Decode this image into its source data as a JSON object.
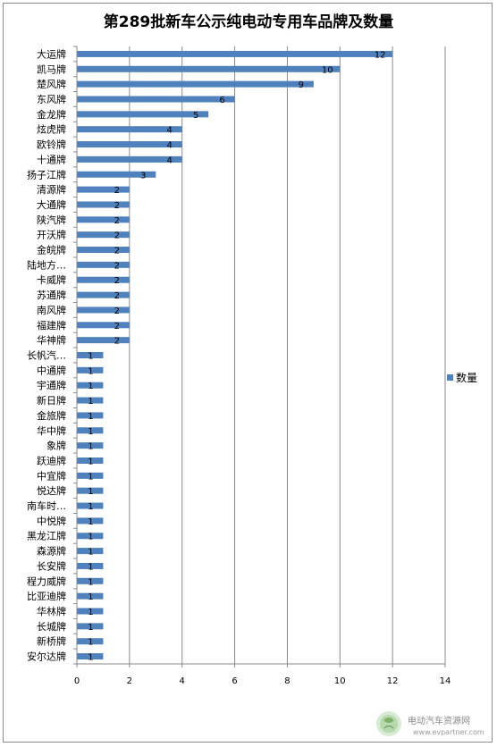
{
  "chart_data": {
    "type": "bar",
    "orientation": "horizontal",
    "title": "第289批新车公示纯电动专用车品牌及数量",
    "categories": [
      "大运牌",
      "凯马牌",
      "楚风牌",
      "东风牌",
      "金龙牌",
      "炫虎牌",
      "欧铃牌",
      "十通牌",
      "扬子江牌",
      "清源牌",
      "大通牌",
      "陕汽牌",
      "开沃牌",
      "金皖牌",
      "陆地方…",
      "卡威牌",
      "苏通牌",
      "南风牌",
      "福建牌",
      "华神牌",
      "长帆汽…",
      "中通牌",
      "宇通牌",
      "新日牌",
      "金旅牌",
      "华中牌",
      "象牌",
      "跃迪牌",
      "中宜牌",
      "悦达牌",
      "南车时…",
      "中悦牌",
      "黑龙江牌",
      "森源牌",
      "长安牌",
      "程力威牌",
      "比亚迪牌",
      "华林牌",
      "长城牌",
      "新桥牌",
      "安尔达牌"
    ],
    "series": [
      {
        "name": "数量",
        "color": "#4f81bd",
        "values": [
          12,
          10,
          9,
          6,
          5,
          4,
          4,
          4,
          3,
          2,
          2,
          2,
          2,
          2,
          2,
          2,
          2,
          2,
          2,
          2,
          1,
          1,
          1,
          1,
          1,
          1,
          1,
          1,
          1,
          1,
          1,
          1,
          1,
          1,
          1,
          1,
          1,
          1,
          1,
          1,
          1
        ]
      }
    ],
    "xlim": [
      0,
      14
    ],
    "x_ticks": [
      0,
      2,
      4,
      6,
      8,
      10,
      12,
      14
    ],
    "grid": "vertical",
    "legend": "right",
    "data_labels": true
  },
  "watermark": {
    "text": "电动汽车资源网",
    "url": "www.evpartner.com",
    "icon": "leaf-globe-icon"
  }
}
